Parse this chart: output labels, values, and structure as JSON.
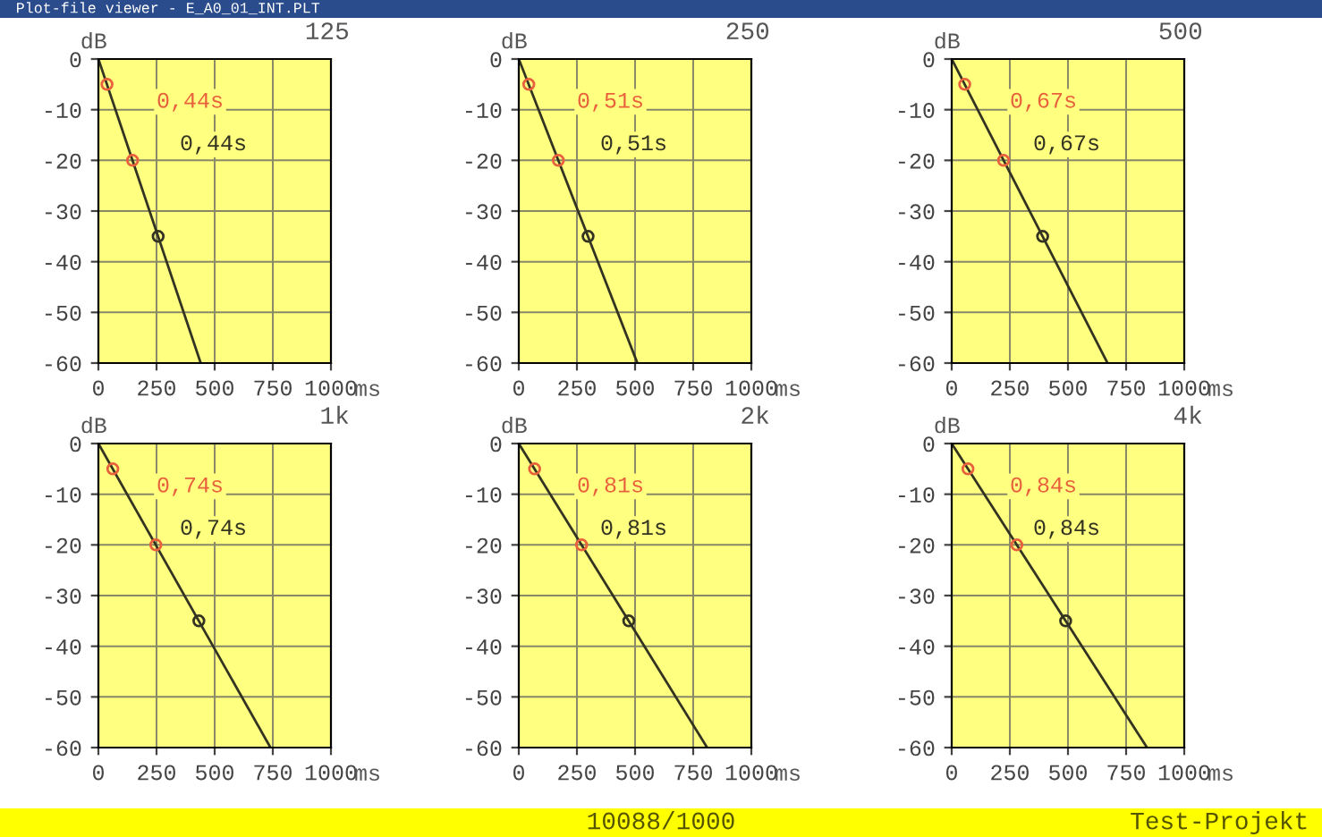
{
  "chart_data": [
    {
      "type": "line",
      "title": "125",
      "xlabel": "ms",
      "ylabel": "dB",
      "xlim": [
        0,
        1000
      ],
      "ylim": [
        -60,
        0
      ],
      "xticks": [
        0,
        250,
        500,
        750,
        1000
      ],
      "yticks": [
        -60,
        -50,
        -40,
        -30,
        -20,
        -10,
        0
      ],
      "grid": true,
      "annotations": [
        "0,44s",
        "0,44s"
      ],
      "series": [
        {
          "type": "line",
          "color": "#333322",
          "marker": "none",
          "x": [
            0,
            440
          ],
          "values": [
            0,
            -60
          ]
        },
        {
          "type": "scatter",
          "color": "#e8603c",
          "marker": "circle",
          "x": [
            37,
            147
          ],
          "values": [
            -5,
            -20
          ]
        },
        {
          "type": "scatter",
          "color": "#333322",
          "marker": "circle",
          "x": [
            257
          ],
          "values": [
            -35
          ]
        }
      ]
    },
    {
      "type": "line",
      "title": "250",
      "xlabel": "ms",
      "ylabel": "dB",
      "xlim": [
        0,
        1000
      ],
      "ylim": [
        -60,
        0
      ],
      "xticks": [
        0,
        250,
        500,
        750,
        1000
      ],
      "yticks": [
        -60,
        -50,
        -40,
        -30,
        -20,
        -10,
        0
      ],
      "grid": true,
      "annotations": [
        "0,51s",
        "0,51s"
      ],
      "series": [
        {
          "type": "line",
          "color": "#333322",
          "marker": "none",
          "x": [
            0,
            510
          ],
          "values": [
            0,
            -60
          ]
        },
        {
          "type": "scatter",
          "color": "#e8603c",
          "marker": "circle",
          "x": [
            43,
            170
          ],
          "values": [
            -5,
            -20
          ]
        },
        {
          "type": "scatter",
          "color": "#333322",
          "marker": "circle",
          "x": [
            298
          ],
          "values": [
            -35
          ]
        }
      ]
    },
    {
      "type": "line",
      "title": "500",
      "xlabel": "ms",
      "ylabel": "dB",
      "xlim": [
        0,
        1000
      ],
      "ylim": [
        -60,
        0
      ],
      "xticks": [
        0,
        250,
        500,
        750,
        1000
      ],
      "yticks": [
        -60,
        -50,
        -40,
        -30,
        -20,
        -10,
        0
      ],
      "grid": true,
      "annotations": [
        "0,67s",
        "0,67s"
      ],
      "series": [
        {
          "type": "line",
          "color": "#333322",
          "marker": "none",
          "x": [
            0,
            670
          ],
          "values": [
            0,
            -60
          ]
        },
        {
          "type": "scatter",
          "color": "#e8603c",
          "marker": "circle",
          "x": [
            56,
            223
          ],
          "values": [
            -5,
            -20
          ]
        },
        {
          "type": "scatter",
          "color": "#333322",
          "marker": "circle",
          "x": [
            391
          ],
          "values": [
            -35
          ]
        }
      ]
    },
    {
      "type": "line",
      "title": "1k",
      "xlabel": "ms",
      "ylabel": "dB",
      "xlim": [
        0,
        1000
      ],
      "ylim": [
        -60,
        0
      ],
      "xticks": [
        0,
        250,
        500,
        750,
        1000
      ],
      "yticks": [
        -60,
        -50,
        -40,
        -30,
        -20,
        -10,
        0
      ],
      "grid": true,
      "annotations": [
        "0,74s",
        "0,74s"
      ],
      "series": [
        {
          "type": "line",
          "color": "#333322",
          "marker": "none",
          "x": [
            0,
            740
          ],
          "values": [
            0,
            -60
          ]
        },
        {
          "type": "scatter",
          "color": "#e8603c",
          "marker": "circle",
          "x": [
            62,
            247
          ],
          "values": [
            -5,
            -20
          ]
        },
        {
          "type": "scatter",
          "color": "#333322",
          "marker": "circle",
          "x": [
            432
          ],
          "values": [
            -35
          ]
        }
      ]
    },
    {
      "type": "line",
      "title": "2k",
      "xlabel": "ms",
      "ylabel": "dB",
      "xlim": [
        0,
        1000
      ],
      "ylim": [
        -60,
        0
      ],
      "xticks": [
        0,
        250,
        500,
        750,
        1000
      ],
      "yticks": [
        -60,
        -50,
        -40,
        -30,
        -20,
        -10,
        0
      ],
      "grid": true,
      "annotations": [
        "0,81s",
        "0,81s"
      ],
      "series": [
        {
          "type": "line",
          "color": "#333322",
          "marker": "none",
          "x": [
            0,
            810
          ],
          "values": [
            0,
            -60
          ]
        },
        {
          "type": "scatter",
          "color": "#e8603c",
          "marker": "circle",
          "x": [
            68,
            270
          ],
          "values": [
            -5,
            -20
          ]
        },
        {
          "type": "scatter",
          "color": "#333322",
          "marker": "circle",
          "x": [
            473
          ],
          "values": [
            -35
          ]
        }
      ]
    },
    {
      "type": "line",
      "title": "4k",
      "xlabel": "ms",
      "ylabel": "dB",
      "xlim": [
        0,
        1000
      ],
      "ylim": [
        -60,
        0
      ],
      "xticks": [
        0,
        250,
        500,
        750,
        1000
      ],
      "yticks": [
        -60,
        -50,
        -40,
        -30,
        -20,
        -10,
        0
      ],
      "grid": true,
      "annotations": [
        "0,84s",
        "0,84s"
      ],
      "series": [
        {
          "type": "line",
          "color": "#333322",
          "marker": "none",
          "x": [
            0,
            840
          ],
          "values": [
            0,
            -60
          ]
        },
        {
          "type": "scatter",
          "color": "#e8603c",
          "marker": "circle",
          "x": [
            70,
            280
          ],
          "values": [
            -5,
            -20
          ]
        },
        {
          "type": "scatter",
          "color": "#333322",
          "marker": "circle",
          "x": [
            490
          ],
          "values": [
            -35
          ]
        }
      ]
    },
    {
      "type": "other",
      "annotations": [
        "Plot-file viewer - E_A0_01_INT.PLT",
        "10088/1000",
        "Test-Projekt"
      ]
    }
  ]
}
